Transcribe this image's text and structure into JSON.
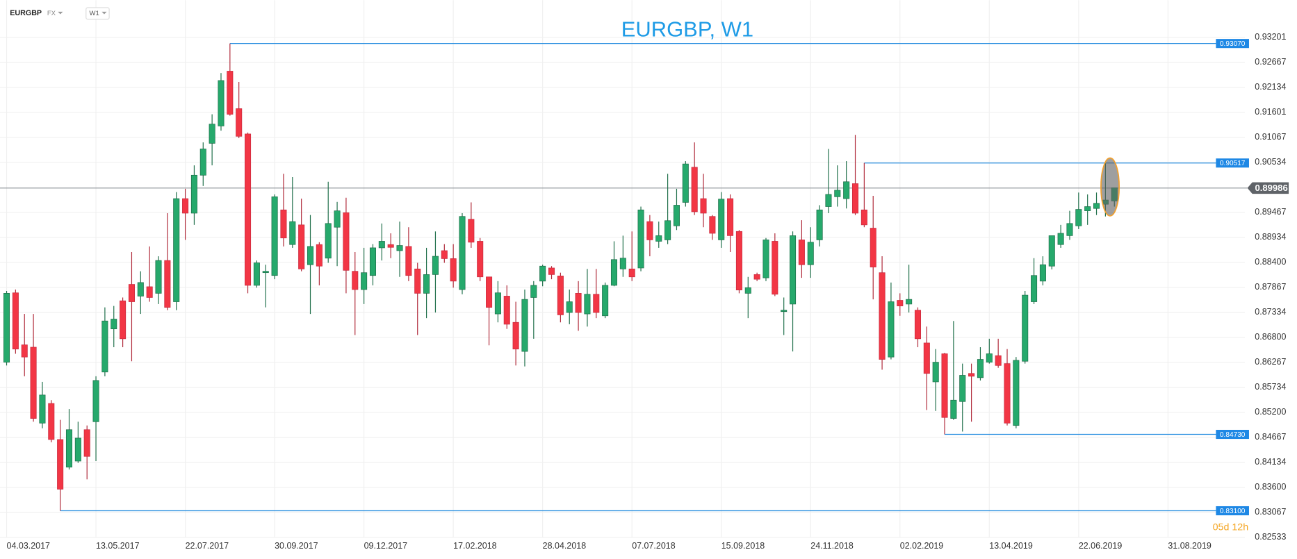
{
  "chart_data": {
    "type": "candlestick",
    "symbol": "EURGBP",
    "market": "FX",
    "timeframe": "W1",
    "title": "EURGBP, W1",
    "timer": "05d 12h",
    "up_color": "#26a96c",
    "down_color": "#f23645",
    "grid": true,
    "categories": [
      "04.03.2017",
      null,
      null,
      null,
      null,
      null,
      null,
      null,
      null,
      null,
      "13.05.2017",
      null,
      null,
      null,
      null,
      null,
      null,
      null,
      null,
      null,
      "22.07.2017",
      null,
      null,
      null,
      null,
      null,
      null,
      null,
      null,
      null,
      "30.09.2017",
      null,
      null,
      null,
      null,
      null,
      null,
      null,
      null,
      null,
      "09.12.2017",
      null,
      null,
      null,
      null,
      null,
      null,
      null,
      null,
      null,
      "17.02.2018",
      null,
      null,
      null,
      null,
      null,
      null,
      null,
      null,
      null,
      "28.04.2018",
      null,
      null,
      null,
      null,
      null,
      null,
      null,
      null,
      null,
      "07.07.2018",
      null,
      null,
      null,
      null,
      null,
      null,
      null,
      null,
      null,
      "15.09.2018",
      null,
      null,
      null,
      null,
      null,
      null,
      null,
      null,
      null,
      "24.11.2018",
      null,
      null,
      null,
      null,
      null,
      null,
      null,
      null,
      null,
      "02.02.2019",
      null,
      null,
      null,
      null,
      null,
      null,
      null,
      null,
      null,
      "13.04.2019",
      null,
      null,
      null,
      null,
      null,
      null,
      null,
      null,
      null,
      "22.06.2019",
      null,
      null,
      null,
      null,
      null,
      null,
      null,
      null,
      null,
      "31.08.2019"
    ],
    "open": [
      0.8627,
      0.8775,
      0.8664,
      0.8659,
      0.8497,
      0.8539,
      0.8462,
      0.8403,
      0.8416,
      0.8483,
      0.85,
      0.8606,
      0.8698,
      0.8758,
      0.8793,
      0.8768,
      0.8788,
      0.8774,
      0.8844,
      0.8756,
      0.8976,
      0.8945,
      0.9026,
      0.9094,
      0.9131,
      0.9248,
      0.9168,
      0.9114,
      0.8791,
      0.8818,
      0.8812,
      0.8952,
      0.8878,
      0.892,
      0.8835,
      0.8878,
      0.8849,
      0.8915,
      0.8946,
      0.8821,
      0.8782,
      0.8812,
      0.8871,
      0.8878,
      0.8865,
      0.8874,
      0.8826,
      0.8774,
      0.8814,
      0.8865,
      0.8848,
      0.8782,
      0.8932,
      0.8885,
      0.8809,
      0.873,
      0.8768,
      0.8712,
      0.865,
      0.8765,
      0.88,
      0.8828,
      0.8811,
      0.8733,
      0.8774,
      0.873,
      0.8772,
      0.8726,
      0.8791,
      0.8826,
      0.8826,
      0.8828,
      0.8927,
      0.8885,
      0.8888,
      0.8918,
      0.8968,
      0.9043,
      0.8976,
      0.8938,
      0.8888,
      0.8976,
      0.8906,
      0.8774,
      0.8814,
      0.8807,
      0.8885,
      0.8735,
      0.8751,
      0.8888,
      0.8835,
      0.8888,
      0.8959,
      0.898,
      0.8976,
      0.9008,
      0.8952,
      0.8913,
      0.8818,
      0.8638,
      0.8759,
      0.8751,
      0.8738,
      0.8668,
      0.8585,
      0.8645,
      0.8507,
      0.8543,
      0.8603,
      0.8594,
      0.8627,
      0.8641,
      0.8624,
      0.8492,
      0.8629,
      0.8756,
      0.88,
      0.8832,
      0.8878,
      0.8897,
      0.8918,
      0.895,
      0.8955,
      0.8964,
      0.8971,
      null,
      null,
      null,
      null,
      null,
      null
    ],
    "high": [
      0.8779,
      0.8782,
      0.873,
      0.873,
      0.8585,
      0.8546,
      0.8504,
      0.8527,
      0.85,
      0.8492,
      0.8597,
      0.8744,
      0.8747,
      0.8765,
      0.8862,
      0.8821,
      0.8874,
      0.8853,
      0.8945,
      0.899,
      0.8997,
      0.9047,
      0.9096,
      0.9156,
      0.9244,
      0.9307,
      0.9225,
      0.9117,
      0.8844,
      0.8835,
      0.8985,
      0.9029,
      0.9022,
      0.8976,
      0.8941,
      0.8883,
      0.9012,
      0.8969,
      0.8978,
      0.8862,
      0.8871,
      0.8879,
      0.8923,
      0.8902,
      0.8927,
      0.8915,
      0.8839,
      0.8871,
      0.8906,
      0.8879,
      0.8879,
      0.8945,
      0.8968,
      0.8892,
      0.8809,
      0.88,
      0.8791,
      0.8756,
      0.8782,
      0.88,
      0.8835,
      0.8832,
      0.8818,
      0.8782,
      0.88,
      0.8826,
      0.8826,
      0.8797,
      0.8885,
      0.8897,
      0.8906,
      0.8959,
      0.8941,
      0.8927,
      0.9029,
      0.8997,
      0.9056,
      0.9096,
      0.9029,
      0.8941,
      0.899,
      0.8985,
      0.8909,
      0.8809,
      0.8818,
      0.8892,
      0.8902,
      0.8765,
      0.8906,
      0.893,
      0.8915,
      0.8962,
      0.9082,
      0.9047,
      0.9056,
      0.9112,
      0.9052,
      0.8982,
      0.8853,
      0.8797,
      0.8774,
      0.8835,
      0.8744,
      0.8703,
      0.8655,
      0.8647,
      0.8715,
      0.8624,
      0.8624,
      0.8659,
      0.8677,
      0.8677,
      0.8655,
      0.8638,
      0.8779,
      0.8849,
      0.8853,
      0.8897,
      0.892,
      0.895,
      0.8989,
      0.8985,
      0.8989,
      0.9052,
      0.8999,
      null,
      null,
      null,
      null,
      null,
      null
    ],
    "low": [
      0.862,
      0.8645,
      0.8597,
      0.85,
      0.8486,
      0.8456,
      0.831,
      0.8398,
      0.8412,
      0.8377,
      0.8416,
      0.8597,
      0.8659,
      0.8659,
      0.8629,
      0.873,
      0.8756,
      0.8751,
      0.8738,
      0.8738,
      0.8888,
      0.892,
      0.9003,
      0.9047,
      0.9121,
      0.9153,
      0.9105,
      0.8774,
      0.8786,
      0.8744,
      0.8804,
      0.8874,
      0.8871,
      0.8821,
      0.873,
      0.8791,
      0.8839,
      0.8832,
      0.8774,
      0.8685,
      0.8751,
      0.8791,
      0.8844,
      0.8849,
      0.8809,
      0.88,
      0.8685,
      0.8721,
      0.8733,
      0.8839,
      0.8786,
      0.8772,
      0.8871,
      0.88,
      0.8663,
      0.8712,
      0.8698,
      0.862,
      0.8618,
      0.8677,
      0.8789,
      0.8804,
      0.8712,
      0.8708,
      0.8694,
      0.8703,
      0.8721,
      0.8721,
      0.8789,
      0.8809,
      0.88,
      0.8821,
      0.8853,
      0.8871,
      0.8879,
      0.8909,
      0.8959,
      0.8941,
      0.8915,
      0.8888,
      0.8871,
      0.8862,
      0.8774,
      0.8721,
      0.88,
      0.88,
      0.8768,
      0.8685,
      0.865,
      0.8807,
      0.8807,
      0.8874,
      0.8945,
      0.8959,
      0.8955,
      0.8941,
      0.8915,
      0.8761,
      0.8611,
      0.8633,
      0.8726,
      0.8733,
      0.8659,
      0.8525,
      0.8523,
      0.8473,
      0.8504,
      0.8479,
      0.85,
      0.8588,
      0.8624,
      0.8615,
      0.8492,
      0.8486,
      0.8624,
      0.8751,
      0.8791,
      0.8825,
      0.8871,
      0.8888,
      0.8911,
      0.892,
      0.8941,
      0.8938,
      0.8959,
      null,
      null,
      null,
      null,
      null,
      null
    ],
    "close": [
      0.8774,
      0.8655,
      0.8638,
      0.8507,
      0.8557,
      0.8462,
      0.8356,
      0.8483,
      0.8465,
      0.8426,
      0.8588,
      0.8715,
      0.8719,
      0.8677,
      0.8756,
      0.8797,
      0.8765,
      0.8844,
      0.8744,
      0.8976,
      0.8945,
      0.9026,
      0.9082,
      0.9135,
      0.9228,
      0.9156,
      0.9109,
      0.8791,
      0.8839,
      0.8821,
      0.898,
      0.8892,
      0.8927,
      0.8826,
      0.8874,
      0.8832,
      0.8923,
      0.895,
      0.8823,
      0.8782,
      0.8818,
      0.8871,
      0.8885,
      0.8872,
      0.8876,
      0.8812,
      0.8774,
      0.8814,
      0.8853,
      0.8848,
      0.88,
      0.8938,
      0.8883,
      0.8809,
      0.8744,
      0.8775,
      0.8708,
      0.8655,
      0.8761,
      0.8791,
      0.8832,
      0.8814,
      0.8728,
      0.8756,
      0.8733,
      0.8772,
      0.8733,
      0.8791,
      0.8846,
      0.8849,
      0.8809,
      0.8952,
      0.8888,
      0.8897,
      0.8929,
      0.8962,
      0.905,
      0.8948,
      0.8945,
      0.8902,
      0.8975,
      0.8897,
      0.8781,
      0.8786,
      0.8804,
      0.8888,
      0.8772,
      0.8738,
      0.8897,
      0.8835,
      0.8883,
      0.8952,
      0.8985,
      0.8994,
      0.9012,
      0.8945,
      0.892,
      0.883,
      0.8633,
      0.8756,
      0.8747,
      0.8761,
      0.8677,
      0.8603,
      0.8627,
      0.8509,
      0.8546,
      0.8599,
      0.8597,
      0.8633,
      0.8645,
      0.862,
      0.8497,
      0.8631,
      0.877,
      0.8812,
      0.8835,
      0.8897,
      0.8902,
      0.8923,
      0.8953,
      0.8959,
      0.8966,
      0.8973,
      0.8999,
      null,
      null,
      null,
      null,
      null,
      null
    ],
    "ylim": [
      0.82533,
      0.93201
    ],
    "yticks": [
      0.93201,
      0.92667,
      0.92134,
      0.91601,
      0.91067,
      0.90534,
      0.89467,
      0.88934,
      {
        "value": 0.884,
        "label": "0.88400"
      },
      0.87867,
      0.87334,
      {
        "value": 0.868,
        "label": "0.86800"
      },
      0.86267,
      0.85734,
      {
        "value": 0.852,
        "label": "0.85200"
      },
      0.84667,
      0.84134,
      {
        "value": 0.836,
        "label": "0.83600"
      },
      0.83067,
      0.82533
    ],
    "levels": [
      {
        "value": 0.9307,
        "label": "0.93070"
      },
      {
        "value": 0.9052,
        "label": "0.90517"
      },
      {
        "value": 0.8473,
        "label": "0.84730"
      },
      {
        "value": 0.831,
        "label": "0.83100"
      }
    ],
    "last_price": {
      "value": 0.89986,
      "label": "0.89986"
    }
  }
}
